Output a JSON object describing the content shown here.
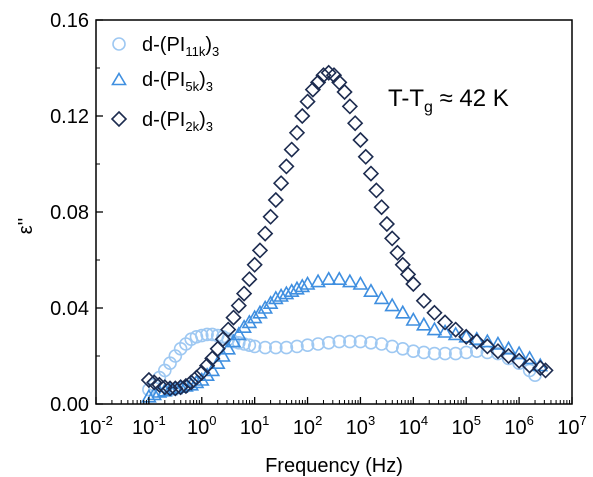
{
  "chart_data": {
    "type": "scatter",
    "xscale": "log",
    "xlabel": "Frequency (Hz)",
    "ylabel": "ε''",
    "xlim": [
      0.01,
      10000000
    ],
    "ylim": [
      0,
      0.16
    ],
    "grid": false,
    "legend_position": "top-left",
    "annotation": {
      "main": "T-T",
      "sub": "g",
      "rest": " ≈ 42 K"
    },
    "x_ticks": [
      {
        "base": "10",
        "exp": "-2"
      },
      {
        "base": "10",
        "exp": "-1"
      },
      {
        "base": "10",
        "exp": "0"
      },
      {
        "base": "10",
        "exp": "1"
      },
      {
        "base": "10",
        "exp": "2"
      },
      {
        "base": "10",
        "exp": "3"
      },
      {
        "base": "10",
        "exp": "4"
      },
      {
        "base": "10",
        "exp": "5"
      },
      {
        "base": "10",
        "exp": "6"
      },
      {
        "base": "10",
        "exp": "7"
      }
    ],
    "y_ticks": [
      "0.00",
      "0.04",
      "0.08",
      "0.12",
      "0.16"
    ],
    "series": [
      {
        "name": "d-(PI11k)3",
        "label": {
          "pre": "d-(PI",
          "sub": "11k",
          "mid": ")",
          "sub2": "3"
        },
        "marker": "circle",
        "color": "#9ec8f2",
        "x": [
          0.1,
          0.126,
          0.158,
          0.2,
          0.251,
          0.316,
          0.398,
          0.501,
          0.631,
          0.794,
          1,
          1.26,
          1.58,
          2,
          2.51,
          3.16,
          3.98,
          5.01,
          6.31,
          7.94,
          10,
          15.8,
          25.1,
          39.8,
          63.1,
          100,
          158,
          251,
          398,
          631,
          1000,
          1580,
          2510,
          3980,
          6310,
          10000,
          15800,
          25100,
          39800,
          63100,
          100000,
          158000,
          251000,
          398000,
          631000,
          1000000,
          1580000,
          2000000
        ],
        "y": [
          0.006,
          0.008,
          0.011,
          0.014,
          0.017,
          0.02,
          0.023,
          0.025,
          0.027,
          0.028,
          0.0285,
          0.029,
          0.029,
          0.0285,
          0.028,
          0.027,
          0.026,
          0.0255,
          0.025,
          0.0245,
          0.024,
          0.0235,
          0.0235,
          0.0235,
          0.024,
          0.0245,
          0.025,
          0.0255,
          0.026,
          0.026,
          0.026,
          0.0255,
          0.025,
          0.024,
          0.023,
          0.022,
          0.0215,
          0.021,
          0.021,
          0.021,
          0.0215,
          0.022,
          0.0215,
          0.021,
          0.019,
          0.017,
          0.014,
          0.012
        ]
      },
      {
        "name": "d-(PI5k)3",
        "label": {
          "pre": "d-(PI",
          "sub": "5k",
          "mid": ")",
          "sub2": "3"
        },
        "marker": "triangle",
        "color": "#3f8fe0",
        "x": [
          0.1,
          0.126,
          0.158,
          0.2,
          0.251,
          0.316,
          0.398,
          0.501,
          0.631,
          0.794,
          1,
          1.26,
          1.58,
          2,
          2.51,
          3.16,
          3.98,
          5.01,
          6.31,
          7.94,
          10,
          12.6,
          15.8,
          20,
          25.1,
          31.6,
          39.8,
          50.1,
          63.1,
          79.4,
          100,
          158,
          251,
          398,
          631,
          1000,
          1580,
          2510,
          3980,
          6310,
          10000,
          15800,
          25100,
          39800,
          63100,
          100000,
          158000,
          251000,
          398000,
          631000,
          1000000,
          1580000,
          2510000
        ],
        "y": [
          0.003,
          0.004,
          0.005,
          0.0055,
          0.006,
          0.0065,
          0.007,
          0.0075,
          0.008,
          0.009,
          0.01,
          0.012,
          0.014,
          0.017,
          0.02,
          0.023,
          0.026,
          0.029,
          0.032,
          0.034,
          0.036,
          0.038,
          0.04,
          0.042,
          0.044,
          0.045,
          0.046,
          0.047,
          0.048,
          0.049,
          0.05,
          0.051,
          0.052,
          0.052,
          0.051,
          0.05,
          0.047,
          0.044,
          0.041,
          0.038,
          0.035,
          0.033,
          0.031,
          0.03,
          0.029,
          0.028,
          0.027,
          0.026,
          0.025,
          0.023,
          0.021,
          0.019,
          0.016
        ]
      },
      {
        "name": "d-(PI2k)3",
        "label": {
          "pre": "d-(PI",
          "sub": "2k",
          "mid": ")",
          "sub2": "3"
        },
        "marker": "diamond",
        "color": "#1c2b4f",
        "x": [
          0.1,
          0.126,
          0.158,
          0.2,
          0.251,
          0.316,
          0.398,
          0.501,
          0.631,
          0.794,
          1,
          1.26,
          1.58,
          2,
          2.51,
          3.16,
          3.98,
          5.01,
          6.31,
          7.94,
          10,
          12.6,
          15.8,
          20,
          25.1,
          31.6,
          39.8,
          50.1,
          63.1,
          79.4,
          100,
          126,
          158,
          200,
          251,
          316,
          398,
          501,
          631,
          794,
          1000,
          1260,
          1580,
          2000,
          2510,
          3160,
          3980,
          5010,
          6310,
          7940,
          10000,
          15800,
          25100,
          39800,
          63100,
          100000,
          158000,
          251000,
          398000,
          631000,
          1000000,
          1580000,
          2510000,
          3160000
        ],
        "y": [
          0.01,
          0.009,
          0.008,
          0.007,
          0.0065,
          0.0065,
          0.007,
          0.0075,
          0.009,
          0.011,
          0.013,
          0.016,
          0.019,
          0.023,
          0.027,
          0.031,
          0.036,
          0.041,
          0.046,
          0.052,
          0.058,
          0.064,
          0.071,
          0.078,
          0.085,
          0.092,
          0.099,
          0.106,
          0.113,
          0.12,
          0.126,
          0.131,
          0.134,
          0.137,
          0.138,
          0.137,
          0.134,
          0.13,
          0.124,
          0.117,
          0.11,
          0.103,
          0.096,
          0.089,
          0.082,
          0.075,
          0.069,
          0.063,
          0.058,
          0.054,
          0.05,
          0.043,
          0.038,
          0.034,
          0.031,
          0.028,
          0.026,
          0.024,
          0.022,
          0.02,
          0.018,
          0.016,
          0.015,
          0.014
        ]
      }
    ]
  }
}
